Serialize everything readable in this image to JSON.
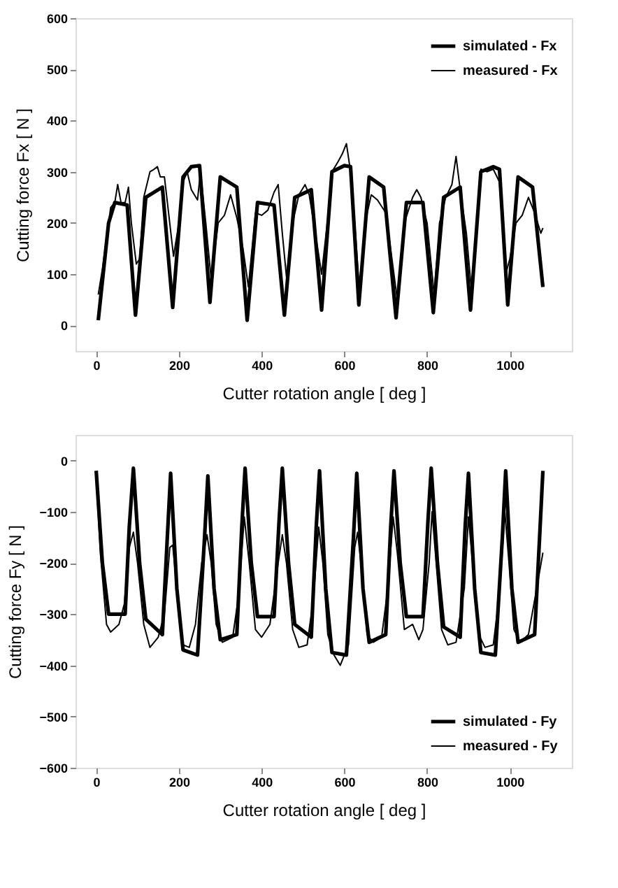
{
  "chart_data": [
    {
      "type": "line",
      "xlabel": "Cutter rotation angle [ deg ]",
      "ylabel": "Cutting force Fx [ N ]",
      "xlim": [
        -50,
        1150
      ],
      "xticks": [
        0,
        200,
        400,
        600,
        800,
        1000
      ],
      "ylim": [
        -50,
        600
      ],
      "yticks": [
        0,
        100,
        200,
        300,
        400,
        500,
        600
      ],
      "grid": false,
      "legend": "top right",
      "line_style": "solid",
      "marker": "none",
      "series": [
        {
          "name": "simulated - Fx",
          "color": "#000000",
          "x": [
            5,
            30,
            45,
            75,
            95,
            120,
            160,
            185,
            210,
            230,
            250,
            275,
            300,
            340,
            365,
            390,
            430,
            455,
            480,
            520,
            545,
            570,
            600,
            615,
            635,
            660,
            695,
            725,
            750,
            790,
            815,
            840,
            880,
            905,
            930,
            960,
            975,
            995,
            1020,
            1055,
            1080
          ],
          "values": [
            10,
            200,
            240,
            235,
            20,
            250,
            270,
            35,
            290,
            310,
            312,
            45,
            290,
            270,
            10,
            240,
            235,
            20,
            250,
            265,
            30,
            300,
            312,
            310,
            40,
            290,
            270,
            15,
            240,
            240,
            25,
            250,
            270,
            30,
            300,
            310,
            305,
            40,
            290,
            270,
            75
          ]
        },
        {
          "name": "measured - Fx",
          "color": "#000000",
          "x": [
            5,
            15,
            35,
            45,
            52,
            60,
            70,
            78,
            85,
            97,
            105,
            115,
            130,
            140,
            148,
            155,
            165,
            175,
            187,
            200,
            210,
            220,
            230,
            245,
            252,
            265,
            278,
            295,
            310,
            325,
            340,
            355,
            368,
            385,
            400,
            415,
            430,
            440,
            450,
            460,
            475,
            490,
            505,
            515,
            530,
            545,
            560,
            570,
            585,
            595,
            605,
            615,
            625,
            637,
            650,
            665,
            680,
            700,
            715,
            728,
            745,
            765,
            775,
            785,
            800,
            817,
            830,
            845,
            860,
            870,
            880,
            895,
            908,
            920,
            930,
            945,
            960,
            975,
            990,
            1000,
            1015,
            1030,
            1045,
            1060,
            1075,
            1080
          ],
          "values": [
            60,
            110,
            230,
            240,
            275,
            240,
            240,
            270,
            200,
            120,
            130,
            250,
            300,
            305,
            310,
            290,
            290,
            220,
            135,
            200,
            280,
            300,
            265,
            245,
            300,
            200,
            90,
            200,
            215,
            255,
            210,
            150,
            75,
            220,
            215,
            225,
            260,
            275,
            180,
            95,
            200,
            255,
            275,
            255,
            180,
            100,
            210,
            300,
            320,
            335,
            355,
            300,
            200,
            60,
            200,
            255,
            245,
            220,
            130,
            50,
            200,
            250,
            265,
            250,
            200,
            60,
            200,
            250,
            275,
            330,
            265,
            180,
            60,
            200,
            305,
            300,
            305,
            280,
            100,
            130,
            200,
            215,
            250,
            220,
            180,
            190
          ]
        }
      ]
    },
    {
      "type": "line",
      "xlabel": "Cutter rotation angle [ deg ]",
      "ylabel": "Cutting force Fy [ N ]",
      "xlim": [
        -50,
        1150
      ],
      "xticks": [
        0,
        200,
        400,
        600,
        800,
        1000
      ],
      "ylim": [
        -600,
        50
      ],
      "yticks": [
        -600,
        -500,
        -400,
        -300,
        -200,
        -100,
        0
      ],
      "grid": false,
      "legend": "bottom right",
      "line_style": "solid",
      "marker": "none",
      "series": [
        {
          "name": "simulated - Fy",
          "color": "#000000",
          "x": [
            0,
            15,
            30,
            70,
            80,
            90,
            105,
            120,
            160,
            172,
            180,
            195,
            210,
            245,
            262,
            270,
            285,
            300,
            340,
            352,
            360,
            375,
            390,
            430,
            442,
            450,
            465,
            480,
            520,
            532,
            540,
            555,
            570,
            605,
            622,
            630,
            645,
            660,
            700,
            712,
            720,
            735,
            750,
            790,
            802,
            810,
            825,
            840,
            880,
            892,
            900,
            915,
            930,
            965,
            982,
            990,
            1005,
            1020,
            1060,
            1072,
            1080
          ],
          "values": [
            -20,
            -200,
            -300,
            -300,
            -130,
            -15,
            -200,
            -310,
            -340,
            -150,
            -25,
            -250,
            -370,
            -380,
            -150,
            -30,
            -250,
            -350,
            -340,
            -130,
            -15,
            -200,
            -305,
            -305,
            -120,
            -15,
            -200,
            -320,
            -345,
            -130,
            -20,
            -250,
            -375,
            -380,
            -150,
            -25,
            -250,
            -355,
            -340,
            -130,
            -20,
            -200,
            -305,
            -305,
            -120,
            -15,
            -200,
            -325,
            -345,
            -130,
            -25,
            -250,
            -375,
            -380,
            -150,
            -20,
            -250,
            -355,
            -340,
            -150,
            -20
          ]
        },
        {
          "name": "measured - Fy",
          "color": "#000000",
          "x": [
            0,
            10,
            25,
            35,
            55,
            68,
            80,
            90,
            100,
            115,
            130,
            150,
            165,
            178,
            185,
            195,
            210,
            225,
            240,
            255,
            268,
            278,
            290,
            305,
            330,
            345,
            358,
            370,
            385,
            400,
            420,
            440,
            450,
            460,
            475,
            490,
            510,
            525,
            538,
            548,
            560,
            575,
            590,
            610,
            625,
            632,
            640,
            655,
            670,
            690,
            705,
            718,
            728,
            745,
            765,
            780,
            790,
            805,
            812,
            822,
            835,
            850,
            870,
            890,
            900,
            910,
            925,
            940,
            960,
            975,
            988,
            998,
            1010,
            1025,
            1045,
            1065,
            1080
          ],
          "values": [
            -30,
            -180,
            -320,
            -335,
            -320,
            -280,
            -170,
            -140,
            -200,
            -320,
            -365,
            -345,
            -300,
            -170,
            -165,
            -250,
            -360,
            -365,
            -320,
            -200,
            -145,
            -200,
            -320,
            -355,
            -345,
            -260,
            -110,
            -200,
            -330,
            -345,
            -320,
            -200,
            -145,
            -200,
            -330,
            -365,
            -360,
            -270,
            -130,
            -200,
            -340,
            -380,
            -400,
            -360,
            -170,
            -140,
            -200,
            -340,
            -355,
            -345,
            -250,
            -110,
            -180,
            -330,
            -320,
            -350,
            -330,
            -200,
            -100,
            -200,
            -330,
            -360,
            -355,
            -250,
            -110,
            -200,
            -340,
            -365,
            -360,
            -260,
            -100,
            -200,
            -330,
            -355,
            -340,
            -250,
            -180
          ]
        }
      ]
    }
  ]
}
